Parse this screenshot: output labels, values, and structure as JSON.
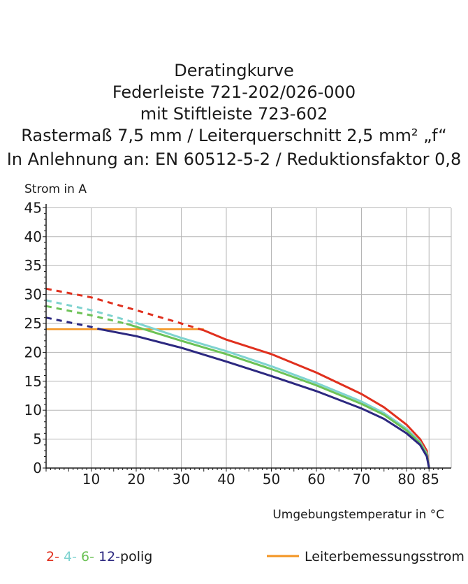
{
  "chart_data": {
    "type": "line",
    "title_lines": [
      "Deratingkurve",
      "Federleiste 721-202/026-000",
      "mit Stiftleiste 723-602",
      "Rastermaß 7,5 mm / Leiterquerschnitt 2,5 mm² „f“",
      "In Anlehnung an: EN 60512-5-2 / Reduktionsfaktor 0,8"
    ],
    "ylabel": "Strom in A",
    "xlabel": "Umgebungstemperatur in  °C",
    "xlim": [
      0,
      88
    ],
    "ylim": [
      0,
      45
    ],
    "x_ticks": [
      10,
      20,
      30,
      40,
      50,
      60,
      70,
      80,
      85
    ],
    "y_ticks": [
      0,
      5,
      10,
      15,
      20,
      25,
      30,
      35,
      40,
      45
    ],
    "grid": true,
    "series": [
      {
        "name": "2-",
        "color": "#e0301e",
        "dashed": [
          [
            0,
            31.0
          ],
          [
            10,
            29.5
          ],
          [
            20,
            27.3
          ],
          [
            30,
            25.0
          ],
          [
            35,
            23.8
          ]
        ],
        "solid": [
          [
            35,
            23.8
          ],
          [
            40,
            22.2
          ],
          [
            50,
            19.7
          ],
          [
            60,
            16.5
          ],
          [
            70,
            12.8
          ],
          [
            75,
            10.5
          ],
          [
            80,
            7.5
          ],
          [
            83,
            5.0
          ],
          [
            84.5,
            3.0
          ],
          [
            85,
            0
          ]
        ]
      },
      {
        "name": "4-",
        "color": "#7fd3d0",
        "dashed": [
          [
            0,
            29.0
          ],
          [
            10,
            27.3
          ],
          [
            20,
            25.1
          ]
        ],
        "solid": [
          [
            20,
            25.1
          ],
          [
            30,
            22.5
          ],
          [
            40,
            20.2
          ],
          [
            50,
            17.6
          ],
          [
            60,
            14.7
          ],
          [
            70,
            11.5
          ],
          [
            75,
            9.5
          ],
          [
            80,
            6.8
          ],
          [
            83,
            4.5
          ],
          [
            84.5,
            2.5
          ],
          [
            85,
            0
          ]
        ]
      },
      {
        "name": "6-",
        "color": "#6cc256",
        "dashed": [
          [
            0,
            28.0
          ],
          [
            10,
            26.4
          ],
          [
            18,
            24.9
          ]
        ],
        "solid": [
          [
            18,
            24.9
          ],
          [
            30,
            22.0
          ],
          [
            40,
            19.7
          ],
          [
            50,
            17.1
          ],
          [
            60,
            14.3
          ],
          [
            70,
            11.1
          ],
          [
            75,
            9.2
          ],
          [
            80,
            6.5
          ],
          [
            83,
            4.3
          ],
          [
            84.5,
            2.3
          ],
          [
            85,
            0
          ]
        ]
      },
      {
        "name": "12-",
        "color": "#2c2880",
        "dashed": [
          [
            0,
            26.0
          ],
          [
            10,
            24.4
          ],
          [
            12,
            24.0
          ]
        ],
        "solid": [
          [
            12,
            24.0
          ],
          [
            20,
            22.8
          ],
          [
            30,
            20.8
          ],
          [
            40,
            18.4
          ],
          [
            50,
            15.9
          ],
          [
            60,
            13.3
          ],
          [
            70,
            10.3
          ],
          [
            75,
            8.5
          ],
          [
            80,
            6.0
          ],
          [
            83,
            4.0
          ],
          [
            84.5,
            2.0
          ],
          [
            85,
            0
          ]
        ]
      }
    ],
    "reference_line": {
      "name": "Leiterbemessungsstrom",
      "color": "#f39422",
      "value": 24,
      "x_range": [
        0,
        35
      ]
    },
    "legend": {
      "position": "bottom",
      "series_labels": [
        "2-",
        "4-",
        "6-",
        "12-"
      ],
      "series_suffix": "polig",
      "reference_label": "Leiterbemessungsstrom"
    },
    "colors": {
      "grid": "#b5b5b5",
      "axis": "#1a1a1a",
      "text": "#1a1a1a"
    }
  }
}
